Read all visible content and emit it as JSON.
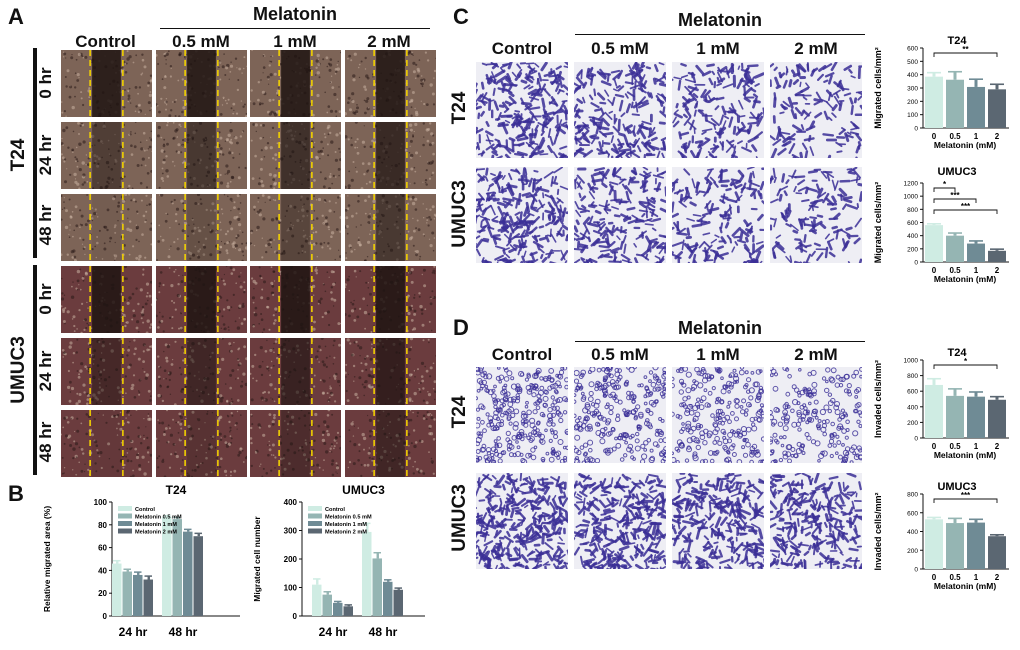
{
  "panel_labels": {
    "a": "A",
    "b": "B",
    "c": "C",
    "d": "D"
  },
  "treatment": "Melatonin",
  "conditions": [
    "Control",
    "0.5 mM",
    "1 mM",
    "2 mM"
  ],
  "scratch": {
    "cell_lines": [
      "T24",
      "UMUC3"
    ],
    "timepoints": [
      "0 hr",
      "24 hr",
      "48 hr"
    ]
  },
  "transwell_cell_lines": [
    "T24",
    "UMUC3"
  ],
  "colors": {
    "control": "#cfece3",
    "mel_05": "#95b5b3",
    "mel_1": "#6f8b95",
    "mel_2": "#5b6772",
    "scratch_line": "#f0d000",
    "scratch_t24": "#7d6457",
    "scratch_umuc3": "#6b3c3e",
    "stain": "#3b2f97"
  },
  "chart_data": [
    {
      "id": "B-T24",
      "type": "bar",
      "title": "T24",
      "categories": [
        "24 hr",
        "48 hr"
      ],
      "series": [
        {
          "name": "Control",
          "values": [
            46,
            87
          ],
          "errors": [
            2.5,
            1.0
          ]
        },
        {
          "name": "Melatonin 0.5 mM",
          "values": [
            39,
            85
          ],
          "errors": [
            2.0,
            1.5
          ]
        },
        {
          "name": "Melatonin 1 mM",
          "values": [
            36,
            74
          ],
          "errors": [
            2.5,
            2.0
          ]
        },
        {
          "name": "Melatonin 2 mM",
          "values": [
            32,
            70
          ],
          "errors": [
            3.0,
            2.5
          ]
        }
      ],
      "xlabel": "",
      "ylabel": "Relative migrated area (%)",
      "ylim": [
        0,
        100
      ],
      "yticks": [
        0,
        20,
        40,
        60,
        80,
        100
      ],
      "legend": "top-left"
    },
    {
      "id": "B-UMUC3",
      "type": "bar",
      "title": "UMUC3",
      "categories": [
        "24 hr",
        "48 hr"
      ],
      "series": [
        {
          "name": "Control",
          "values": [
            110,
            295
          ],
          "errors": [
            20,
            30
          ]
        },
        {
          "name": "Melatonin 0.5 mM",
          "values": [
            75,
            202
          ],
          "errors": [
            10,
            20
          ]
        },
        {
          "name": "Melatonin 1 mM",
          "values": [
            46,
            120
          ],
          "errors": [
            5,
            7
          ]
        },
        {
          "name": "Melatonin 2 mM",
          "values": [
            34,
            92
          ],
          "errors": [
            5,
            6
          ]
        }
      ],
      "xlabel": "",
      "ylabel": "Migrated cell number",
      "ylim": [
        0,
        400
      ],
      "yticks": [
        0,
        100,
        200,
        300,
        400
      ],
      "legend": "top-left"
    },
    {
      "id": "C-T24",
      "type": "bar",
      "title": "T24",
      "categories": [
        "0",
        "0.5",
        "1",
        "2"
      ],
      "values": [
        385,
        362,
        308,
        290
      ],
      "errors": [
        30,
        60,
        58,
        38
      ],
      "xlabel": "Melatonin (mM)",
      "ylabel": "Migrated cells/mm²",
      "ylim": [
        0,
        600
      ],
      "yticks": [
        0,
        100,
        200,
        300,
        400,
        500,
        600
      ],
      "significance": [
        {
          "from": 0,
          "to": 3,
          "label": "**"
        }
      ]
    },
    {
      "id": "C-UMUC3",
      "type": "bar",
      "title": "UMUC3",
      "categories": [
        "0",
        "0.5",
        "1",
        "2"
      ],
      "values": [
        560,
        400,
        280,
        170
      ],
      "errors": [
        20,
        40,
        40,
        25
      ],
      "xlabel": "Melatonin (mM)",
      "ylabel": "Migrated cells/mm²",
      "ylim": [
        0,
        1200
      ],
      "yticks": [
        0,
        200,
        400,
        600,
        800,
        1000,
        1200
      ],
      "significance": [
        {
          "from": 0,
          "to": 1,
          "label": "*"
        },
        {
          "from": 0,
          "to": 2,
          "label": "***"
        },
        {
          "from": 0,
          "to": 3,
          "label": "***"
        }
      ]
    },
    {
      "id": "D-T24",
      "type": "bar",
      "title": "T24",
      "categories": [
        "0",
        "0.5",
        "1",
        "2"
      ],
      "values": [
        680,
        540,
        530,
        490
      ],
      "errors": [
        80,
        90,
        60,
        40
      ],
      "xlabel": "Melatonin (mM)",
      "ylabel": "Invaded cells/mm²",
      "ylim": [
        0,
        1000
      ],
      "yticks": [
        0,
        200,
        400,
        600,
        800,
        1000
      ],
      "significance": [
        {
          "from": 0,
          "to": 3,
          "label": "*"
        }
      ]
    },
    {
      "id": "D-UMUC3",
      "type": "bar",
      "title": "UMUC3",
      "categories": [
        "0",
        "0.5",
        "1",
        "2"
      ],
      "values": [
        530,
        490,
        495,
        350
      ],
      "errors": [
        20,
        50,
        35,
        15
      ],
      "xlabel": "Melatonin (mM)",
      "ylabel": "Invaded cells/mm²",
      "ylim": [
        0,
        800
      ],
      "yticks": [
        0,
        200,
        400,
        600,
        800
      ],
      "significance": [
        {
          "from": 0,
          "to": 3,
          "label": "***"
        }
      ]
    }
  ]
}
